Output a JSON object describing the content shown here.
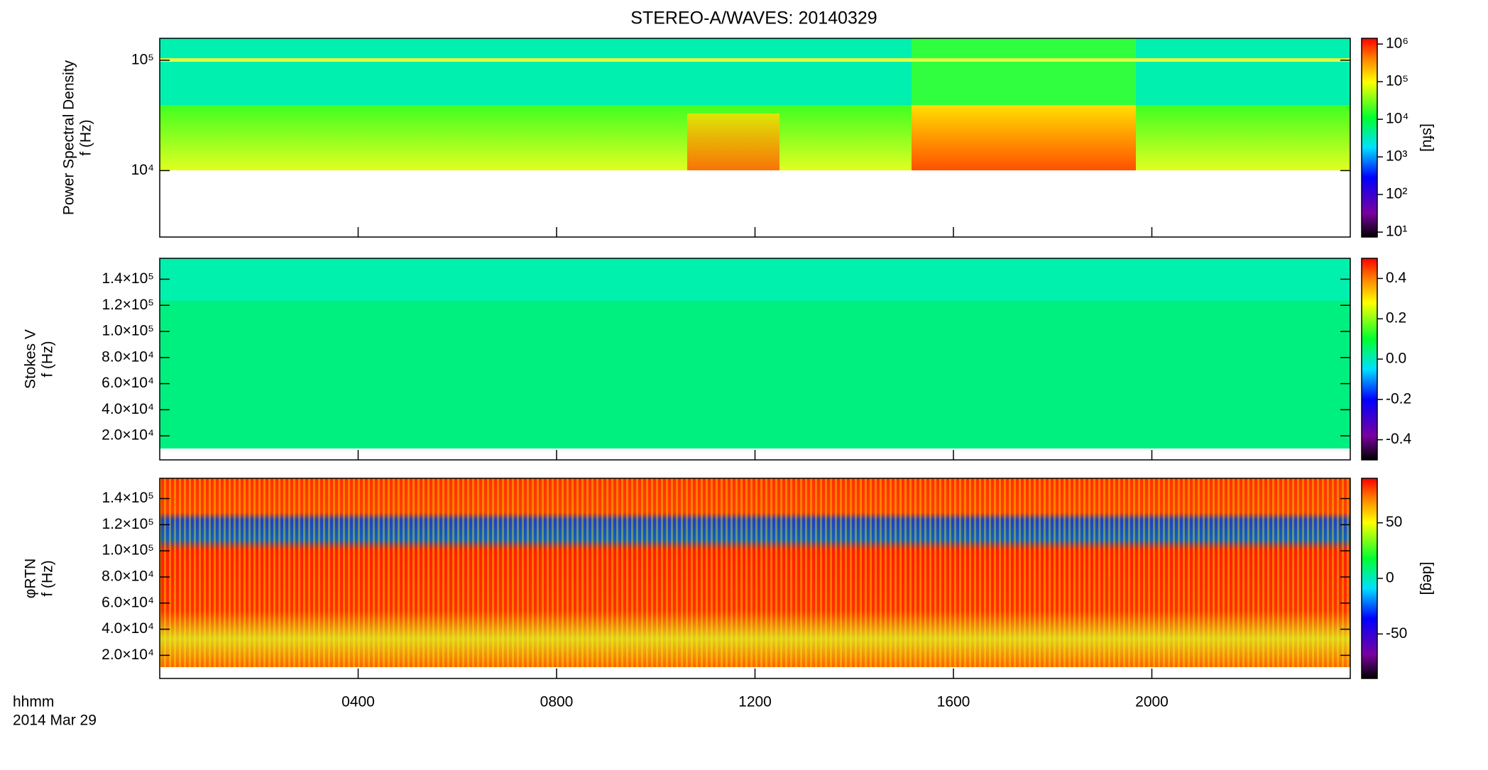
{
  "chart_data": [
    {
      "type": "spectrogram",
      "title": "STEREO-A/WAVES: 20140329",
      "ylabel": [
        "Power Spectral Density",
        "f (Hz)"
      ],
      "log_y": true,
      "ylim": [
        2500,
        158000
      ],
      "yticks": [
        {
          "value": 10000,
          "label": "10⁴"
        },
        {
          "value": 100000,
          "label": "10⁵"
        }
      ],
      "colorbar_label": "[sfu]",
      "log_c": true,
      "clim": [
        7.4,
        1420000
      ],
      "cticks": [
        {
          "value": 10,
          "label": "10¹"
        },
        {
          "value": 100,
          "label": "10²"
        },
        {
          "value": 1000,
          "label": "10³"
        },
        {
          "value": 10000,
          "label": "10⁴"
        },
        {
          "value": 100000,
          "label": "10⁵"
        },
        {
          "value": 1000000,
          "label": "10⁶"
        }
      ]
    },
    {
      "type": "spectrogram",
      "ylabel": [
        "Stokes V",
        "f (Hz)"
      ],
      "log_y": false,
      "ylim": [
        1600,
        156000
      ],
      "yticks": [
        {
          "value": 20000,
          "label": "2.0×10⁴"
        },
        {
          "value": 40000,
          "label": "4.0×10⁴"
        },
        {
          "value": 60000,
          "label": "6.0×10⁴"
        },
        {
          "value": 80000,
          "label": "8.0×10⁴"
        },
        {
          "value": 100000,
          "label": "1.0×10⁵"
        },
        {
          "value": 120000,
          "label": "1.2×10⁵"
        },
        {
          "value": 140000,
          "label": "1.4×10⁵"
        }
      ],
      "log_c": false,
      "clim": [
        -0.5,
        0.5
      ],
      "cticks": [
        -0.4,
        -0.2,
        {
          "value": 0,
          "label": "0.0"
        },
        0.2,
        0.4
      ]
    },
    {
      "type": "spectrogram",
      "ylabel": [
        "φRTN",
        "f (Hz)"
      ],
      "log_y": false,
      "ylim": [
        2300,
        155500
      ],
      "yticks": [
        {
          "value": 20000,
          "label": "2.0×10⁴"
        },
        {
          "value": 40000,
          "label": "4.0×10⁴"
        },
        {
          "value": 60000,
          "label": "6.0×10⁴"
        },
        {
          "value": 80000,
          "label": "8.0×10⁴"
        },
        {
          "value": 100000,
          "label": "1.0×10⁵"
        },
        {
          "value": 120000,
          "label": "1.2×10⁵"
        },
        {
          "value": 140000,
          "label": "1.4×10⁵"
        }
      ],
      "colorbar_label": "[deg]",
      "log_c": false,
      "clim": [
        -90,
        90
      ],
      "cticks": [
        -50,
        0,
        50
      ],
      "xlabel": "hhmm",
      "date": "2014 Mar 29",
      "xlim": [
        0,
        24
      ],
      "xticks": [
        {
          "value": 4,
          "label": "0400"
        },
        {
          "value": 8,
          "label": "0800"
        },
        {
          "value": 12,
          "label": "1200"
        },
        {
          "value": 16,
          "label": "1600"
        },
        {
          "value": 20,
          "label": "2000"
        }
      ]
    }
  ]
}
